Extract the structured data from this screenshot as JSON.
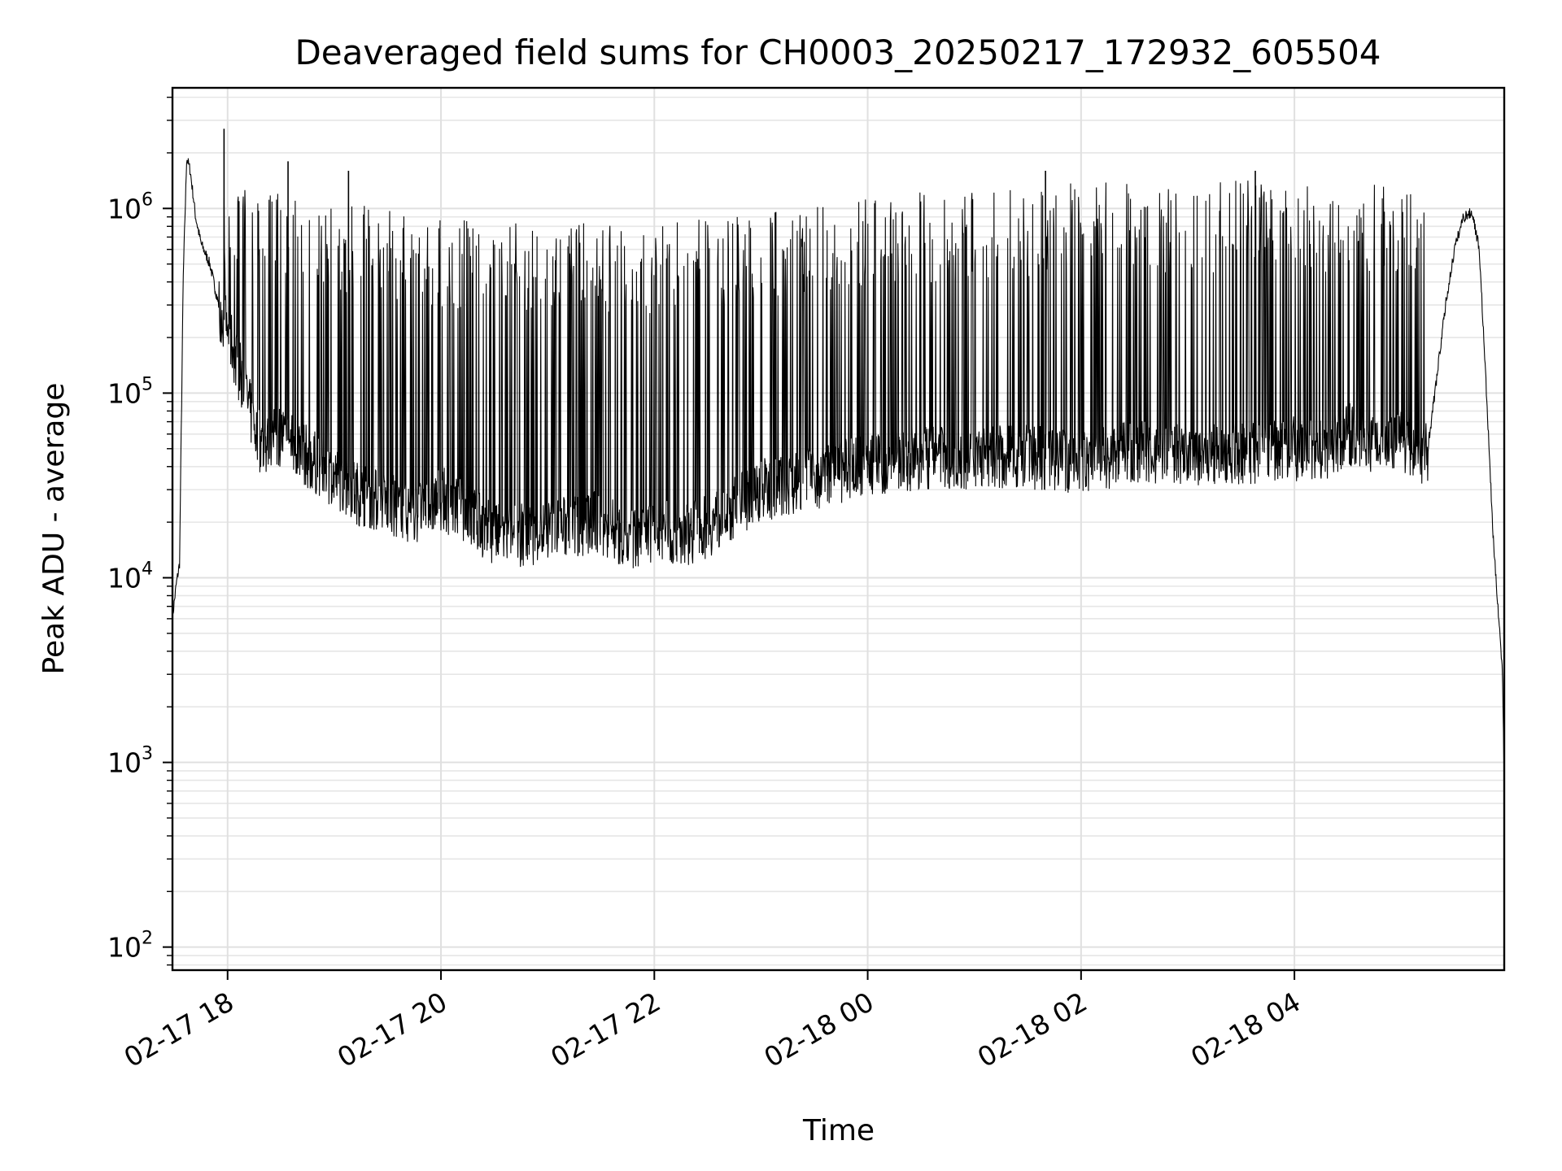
{
  "chart_data": {
    "type": "line",
    "title": "Deaveraged field sums for CH0003_20250217_172932_605504",
    "xlabel": "Time",
    "ylabel": "Peak ADU - average",
    "y_scale": "log",
    "ylim": [
      75,
      4500000
    ],
    "xlim": [
      "2025-02-17 17:29",
      "2025-02-18 05:58"
    ],
    "grid": true,
    "x_tick_labels": [
      "02-17 18",
      "02-17 20",
      "02-17 22",
      "02-18 00",
      "02-18 02",
      "02-18 04"
    ],
    "x_tick_values": [
      "2025-02-17 18:00",
      "2025-02-17 20:00",
      "2025-02-17 22:00",
      "2025-02-18 00:00",
      "2025-02-18 02:00",
      "2025-02-18 04:00"
    ],
    "y_tick_bases": [
      "10",
      "10",
      "10",
      "10",
      "10"
    ],
    "y_tick_exponents": [
      "2",
      "3",
      "4",
      "5",
      "6"
    ],
    "y_tick_values": [
      100,
      1000,
      10000,
      100000,
      1000000
    ],
    "series": [
      {
        "color": "#000000",
        "x": [
          "2025-02-17 17:29",
          "2025-02-17 17:31",
          "2025-02-17 17:33",
          "2025-02-17 17:35",
          "2025-02-17 17:37",
          "2025-02-17 17:39",
          "2025-02-17 17:42",
          "2025-02-17 17:45",
          "2025-02-17 17:50",
          "2025-02-17 17:55",
          "2025-02-17 18:00",
          "2025-02-17 18:05",
          "2025-02-17 18:10",
          "2025-02-17 18:15",
          "2025-02-17 18:20",
          "2025-02-17 18:30",
          "2025-02-17 18:45",
          "2025-02-17 19:00",
          "2025-02-17 19:15",
          "2025-02-17 19:30",
          "2025-02-17 19:45",
          "2025-02-17 20:00",
          "2025-02-17 20:15",
          "2025-02-17 20:30",
          "2025-02-17 20:45",
          "2025-02-17 21:00",
          "2025-02-17 21:15",
          "2025-02-17 21:30",
          "2025-02-17 21:45",
          "2025-02-17 22:00",
          "2025-02-17 22:15",
          "2025-02-17 22:30",
          "2025-02-17 22:45",
          "2025-02-17 23:00",
          "2025-02-17 23:30",
          "2025-02-18 00:00",
          "2025-02-18 00:30",
          "2025-02-18 01:00",
          "2025-02-18 01:30",
          "2025-02-18 02:00",
          "2025-02-18 02:30",
          "2025-02-18 03:00",
          "2025-02-18 03:30",
          "2025-02-18 04:00",
          "2025-02-18 04:15",
          "2025-02-18 04:30",
          "2025-02-18 04:45",
          "2025-02-18 05:00",
          "2025-02-18 05:10",
          "2025-02-18 05:15",
          "2025-02-18 05:20",
          "2025-02-18 05:25",
          "2025-02-18 05:30",
          "2025-02-18 05:35",
          "2025-02-18 05:40",
          "2025-02-18 05:44",
          "2025-02-18 05:48",
          "2025-02-18 05:52",
          "2025-02-18 05:55",
          "2025-02-18 05:57",
          "2025-02-18 05:58"
        ],
        "y": [
          6000,
          9000,
          12000,
          400000,
          1900000,
          1600000,
          900000,
          650000,
          500000,
          300000,
          220000,
          150000,
          100000,
          65000,
          50000,
          60000,
          45000,
          35000,
          28000,
          25000,
          22000,
          27000,
          22000,
          17000,
          17000,
          18000,
          19000,
          20000,
          16000,
          18000,
          17000,
          19000,
          24000,
          30000,
          35000,
          40000,
          45000,
          45000,
          45000,
          42000,
          48000,
          45000,
          47000,
          50000,
          48000,
          60000,
          55000,
          58000,
          45000,
          50000,
          120000,
          300000,
          600000,
          900000,
          950000,
          600000,
          100000,
          15000,
          6000,
          3000,
          800
        ]
      }
    ],
    "spikes": {
      "range": [
        "2025-02-17 17:55",
        "2025-02-18 05:15"
      ],
      "peak_envelope": {
        "x": [
          "2025-02-17 18:00",
          "2025-02-17 19:00",
          "2025-02-17 20:00",
          "2025-02-17 21:00",
          "2025-02-17 22:00",
          "2025-02-17 23:00",
          "2025-02-18 00:00",
          "2025-02-18 01:00",
          "2025-02-18 02:00",
          "2025-02-18 03:00",
          "2025-02-18 04:00",
          "2025-02-18 05:00"
        ],
        "y": [
          1300000,
          1100000,
          900000,
          850000,
          850000,
          1000000,
          1200000,
          1300000,
          1400000,
          1400000,
          1450000,
          1400000
        ]
      },
      "notable_peaks": [
        {
          "x": "2025-02-17 17:58",
          "y": 2700000
        },
        {
          "x": "2025-02-17 18:34",
          "y": 1800000
        },
        {
          "x": "2025-02-17 19:08",
          "y": 1600000
        },
        {
          "x": "2025-02-18 01:40",
          "y": 1600000
        },
        {
          "x": "2025-02-18 03:38",
          "y": 1600000
        }
      ]
    }
  }
}
